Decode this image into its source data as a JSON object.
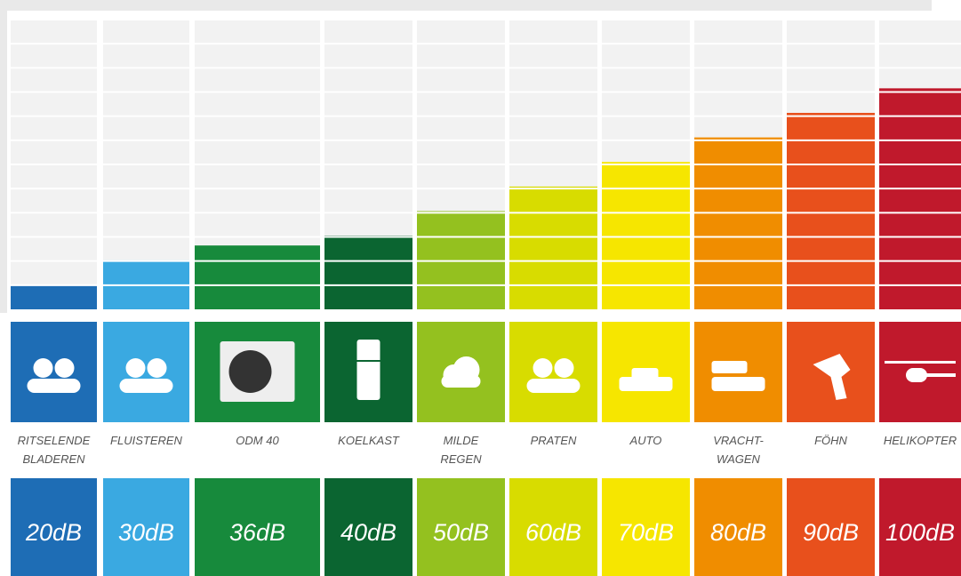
{
  "chart_data": {
    "type": "bar",
    "categories": [
      "RITSELENDE\nBLADEREN",
      "FLUISTEREN",
      "ODM 40",
      "KOELKAST",
      "MILDE\nREGEN",
      "PRATEN",
      "AUTO",
      "VRACHT-\nWAGEN",
      "FÖHN",
      "HELIKOPTER"
    ],
    "values": [
      20,
      30,
      36,
      40,
      50,
      60,
      70,
      80,
      90,
      100
    ],
    "value_labels": [
      "20dB",
      "30dB",
      "36dB",
      "40dB",
      "50dB",
      "60dB",
      "70dB",
      "80dB",
      "90dB",
      "100dB"
    ],
    "colors": [
      "#1e6db5",
      "#3aa9e1",
      "#178a3c",
      "#0b6531",
      "#94c11f",
      "#d8dc00",
      "#f6e600",
      "#f08d00",
      "#e8501c",
      "#c0192c"
    ],
    "ylim": [
      10,
      128
    ]
  }
}
